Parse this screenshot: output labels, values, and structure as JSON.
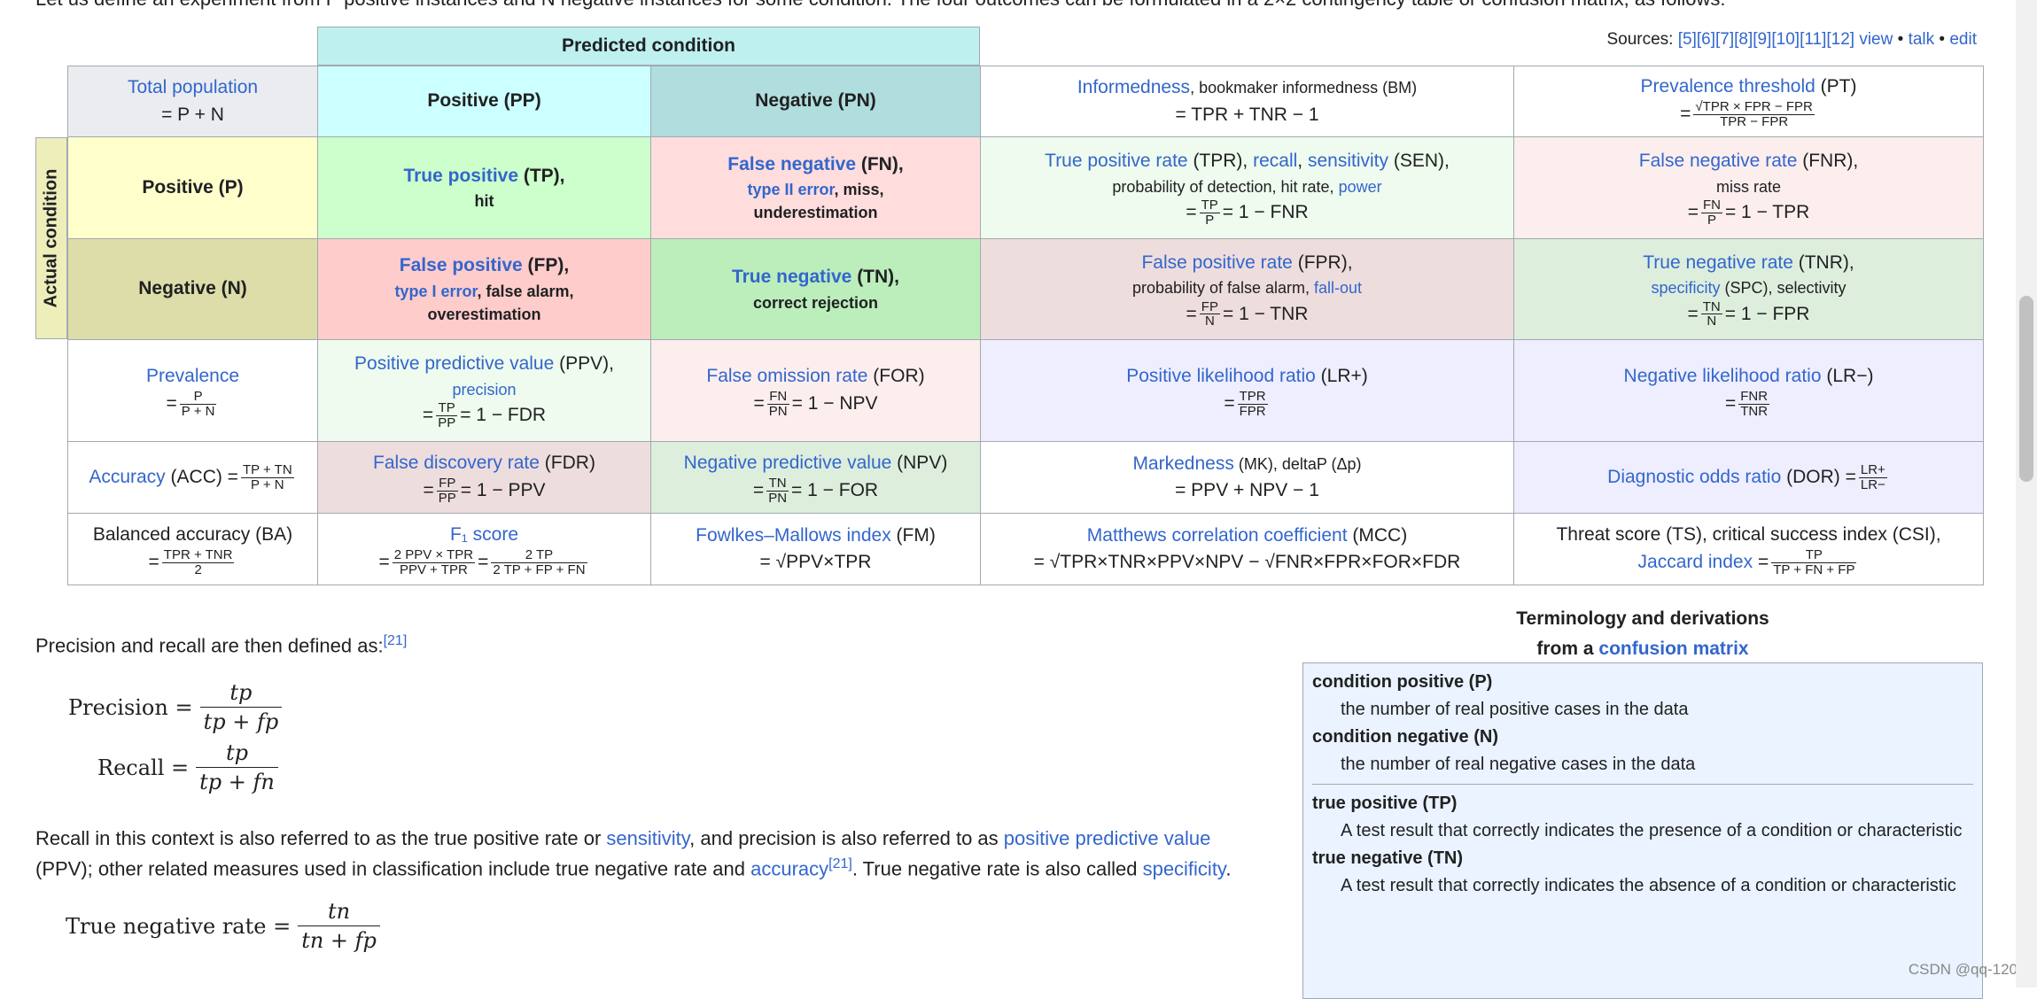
{
  "intro": "Let us define an experiment from P positive instances and N negative instances for some condition. The four outcomes can be formulated in a 2×2 contingency table or confusion matrix, as follows:",
  "sources": {
    "label": "Sources:",
    "refs": "[5][6][7][8][9][10][11][12]",
    "view": "view",
    "talk": "talk",
    "edit": "edit",
    "sep": "•"
  },
  "table": {
    "predicted_header": "Predicted condition",
    "actual_header": "Actual condition",
    "total_population": {
      "link": "Total population",
      "formula": "= P + N"
    },
    "pp": "Positive (PP)",
    "pn": "Negative (PN)",
    "informedness": {
      "link": "Informedness",
      "rest": ", bookmaker informedness (BM)",
      "formula": "= TPR + TNR − 1"
    },
    "prevalence_threshold": {
      "link": "Prevalence threshold",
      "rest": " (PT)",
      "eq": "=",
      "num": "√TPR × FPR − FPR",
      "den": "TPR − FPR"
    },
    "p": "Positive (P)",
    "n": "Negative (N)",
    "tp": {
      "link": "True positive",
      "rest": " (TP),",
      "line2": "hit"
    },
    "fn": {
      "link": "False negative",
      "rest": " (FN),",
      "l2link": "type II error",
      "l2rest": ", miss,",
      "line3": "underestimation"
    },
    "tpr": {
      "link1": "True positive rate",
      "r1": " (TPR), ",
      "link2": "recall",
      "r2": ", ",
      "link3": "sensitivity",
      "r3": " (SEN),",
      "line2a": "probability of detection, hit rate, ",
      "line2link": "power",
      "eq": "=",
      "num": "TP",
      "den": "P",
      "tail": "= 1 − FNR"
    },
    "fnr": {
      "link": "False negative rate",
      "rest": " (FNR),",
      "line2": "miss rate",
      "eq": "=",
      "num": "FN",
      "den": "P",
      "tail": "= 1 − TPR"
    },
    "fp": {
      "link": "False positive",
      "rest": " (FP),",
      "l2link": "type I error",
      "l2rest": ", false alarm,",
      "line3": "overestimation"
    },
    "tn": {
      "link": "True negative",
      "rest": " (TN),",
      "line2": "correct rejection"
    },
    "fpr": {
      "link": "False positive rate",
      "rest": " (FPR),",
      "line2a": "probability of false alarm, ",
      "line2link": "fall-out",
      "eq": "=",
      "num": "FP",
      "den": "N",
      "tail": "= 1 − TNR"
    },
    "tnr": {
      "link": "True negative rate",
      "rest": " (TNR),",
      "l2link": "specificity",
      "l2rest": " (SPC), selectivity",
      "eq": "=",
      "num": "TN",
      "den": "N",
      "tail": "= 1 − FPR"
    },
    "prevalence": {
      "link": "Prevalence",
      "eq": "=",
      "num": "P",
      "den": "P + N"
    },
    "ppv": {
      "link": "Positive predictive value",
      "rest": " (PPV),",
      "l2link": "precision",
      "eq": "=",
      "num": "TP",
      "den": "PP",
      "tail": "= 1 − FDR"
    },
    "for": {
      "link": "False omission rate",
      "rest": " (FOR)",
      "eq": "=",
      "num": "FN",
      "den": "PN",
      "tail": "= 1 − NPV"
    },
    "lrp": {
      "link": "Positive likelihood ratio",
      "rest": " (LR+)",
      "eq": "=",
      "num": "TPR",
      "den": "FPR"
    },
    "lrn": {
      "link": "Negative likelihood ratio",
      "rest": " (LR−)",
      "eq": "=",
      "num": "FNR",
      "den": "TNR"
    },
    "acc": {
      "link": "Accuracy",
      "rest": " (ACC) =",
      "num": "TP + TN",
      "den": "P + N"
    },
    "fdr": {
      "link": "False discovery rate",
      "rest": " (FDR)",
      "eq": "=",
      "num": "FP",
      "den": "PP",
      "tail": "= 1 − PPV"
    },
    "npv": {
      "link": "Negative predictive value",
      "rest": " (NPV)",
      "eq": "=",
      "num": "TN",
      "den": "PN",
      "tail": "= 1 − FOR"
    },
    "mk": {
      "link": "Markedness",
      "rest": " (MK), deltaP (Δp)",
      "formula": "= PPV + NPV − 1"
    },
    "dor": {
      "link": "Diagnostic odds ratio",
      "rest": " (DOR) =",
      "num": "LR+",
      "den": "LR−"
    },
    "ba": {
      "label": "Balanced accuracy (BA)",
      "eq": "=",
      "num": "TPR + TNR",
      "den": "2"
    },
    "f1": {
      "link": "F₁ score",
      "eq": "=",
      "num1": "2 PPV × TPR",
      "den1": "PPV + TPR",
      "eq2": "=",
      "num2": "2 TP",
      "den2": "2 TP + FP + FN"
    },
    "fm": {
      "link": "Fowlkes–Mallows index",
      "rest": " (FM)",
      "formula": "= √PPV×TPR"
    },
    "mcc": {
      "link": "Matthews correlation coefficient",
      "rest": " (MCC)",
      "formula": "= √TPR×TNR×PPV×NPV − √FNR×FPR×FOR×FDR"
    },
    "ts": {
      "line1": "Threat score (TS), critical success index (CSI),",
      "link": "Jaccard index",
      "eq": "=",
      "num": "TP",
      "den": "TP + FN + FP"
    }
  },
  "text": {
    "p1": "Precision and recall are then defined as:",
    "ref21": "[21]",
    "precision_label": "Precision =",
    "precision_num": "tp",
    "precision_den": "tp + fp",
    "recall_label": "Recall =",
    "recall_num": "tp",
    "recall_den": "tp + fn",
    "p2a": "Recall in this context is also referred to as the true positive rate or ",
    "p2_sens": "sensitivity",
    "p2b": ", and precision is also referred to as ",
    "p2_ppv": "positive predictive value",
    "p2c": "(PPV); other related measures used in classification include true negative rate and ",
    "p2_acc": "accuracy",
    "p2d": ". True negative rate is also called ",
    "p2_spec": "specificity",
    "p2e": ".",
    "tnr_label": "True negative rate =",
    "tnr_num": "tn",
    "tnr_den": "tn + fp"
  },
  "glossary": {
    "title1": "Terminology and derivations",
    "title2a": "from a ",
    "title2link": "confusion matrix",
    "items": [
      {
        "term": "condition positive (P)",
        "def": "the number of real positive cases in the data"
      },
      {
        "term": "condition negative (N)",
        "def": "the number of real negative cases in the data"
      },
      {
        "term": "true positive (TP)",
        "def": "A test result that correctly indicates the presence of a condition or characteristic"
      },
      {
        "term": "true negative (TN)",
        "def": "A test result that correctly indicates the absence of a condition or characteristic"
      }
    ]
  },
  "watermark": "CSDN @qq-120",
  "colors": {
    "link": "#3366cc",
    "pred_header": "#bff0f0",
    "actual_header": "#eeeebb",
    "pp": "#ccffff",
    "pn": "#b0dddd",
    "p": "#ffffcc",
    "n": "#ddddaa",
    "tp": "#ccffcc",
    "fn": "#ffdddd",
    "fp": "#ffcccc",
    "tn": "#bbeebb",
    "tpr": "#eefbee",
    "fnr": "#fdeeee",
    "fpr": "#eedddd",
    "tnr": "#ddeedd",
    "ppv": "#eefbee",
    "for": "#fdeeee",
    "lr": "#eeeeff",
    "fdr": "#eedddd",
    "npv": "#ddeedd",
    "gloss": "#eaf3ff"
  }
}
